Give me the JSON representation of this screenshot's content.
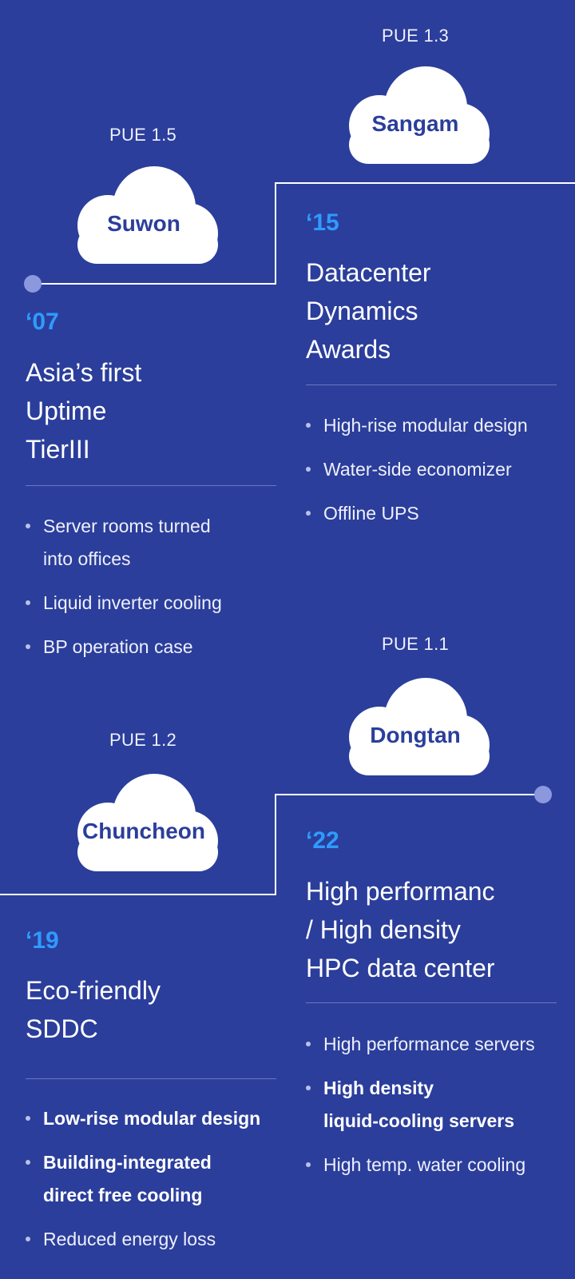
{
  "sites": [
    {
      "key": "suwon",
      "pue": "PUE 1.5",
      "name": "Suwon",
      "year": "‘07",
      "title_lines": [
        "Asia’s first",
        "Uptime",
        "TierIII"
      ],
      "bullets": [
        {
          "lines": [
            "Server rooms turned",
            "into offices"
          ],
          "bold": false
        },
        {
          "lines": [
            "Liquid inverter cooling"
          ],
          "bold": false
        },
        {
          "lines": [
            "BP operation case"
          ],
          "bold": false
        }
      ]
    },
    {
      "key": "sangam",
      "pue": "PUE 1.3",
      "name": "Sangam",
      "year": "‘15",
      "title_lines": [
        "Datacenter",
        "Dynamics",
        "Awards"
      ],
      "bullets": [
        {
          "lines": [
            "High-rise modular design"
          ],
          "bold": false
        },
        {
          "lines": [
            "Water-side economizer"
          ],
          "bold": false
        },
        {
          "lines": [
            "Offline UPS"
          ],
          "bold": false
        }
      ]
    },
    {
      "key": "chuncheon",
      "pue": "PUE 1.2",
      "name": "Chuncheon",
      "year": "‘19",
      "title_lines": [
        "Eco-friendly",
        "SDDC"
      ],
      "bullets": [
        {
          "lines": [
            "Low-rise modular design"
          ],
          "bold": true
        },
        {
          "lines": [
            "Building-integrated",
            "direct free cooling"
          ],
          "bold": true
        },
        {
          "lines": [
            "Reduced energy loss"
          ],
          "bold": false
        }
      ]
    },
    {
      "key": "dongtan",
      "pue": "PUE 1.1",
      "name": "Dongtan",
      "year": "‘22",
      "title_lines": [
        "High performanc",
        "/ High density",
        "HPC data center"
      ],
      "bullets": [
        {
          "lines": [
            "High performance servers"
          ],
          "bold": false
        },
        {
          "lines": [
            "High density",
            "liquid-cooling servers"
          ],
          "bold": true
        },
        {
          "lines": [
            "High temp. water cooling"
          ],
          "bold": false
        }
      ]
    }
  ],
  "colors": {
    "background": "#2b3e9b",
    "year_accent": "#2f9bff",
    "cloud_fill": "#ffffff",
    "cloud_text": "#2b3e9b",
    "timeline_dot": "#8b98de"
  },
  "icons": [
    "cloud-icon",
    "bullet-dot-icon",
    "timeline-dot-icon"
  ]
}
